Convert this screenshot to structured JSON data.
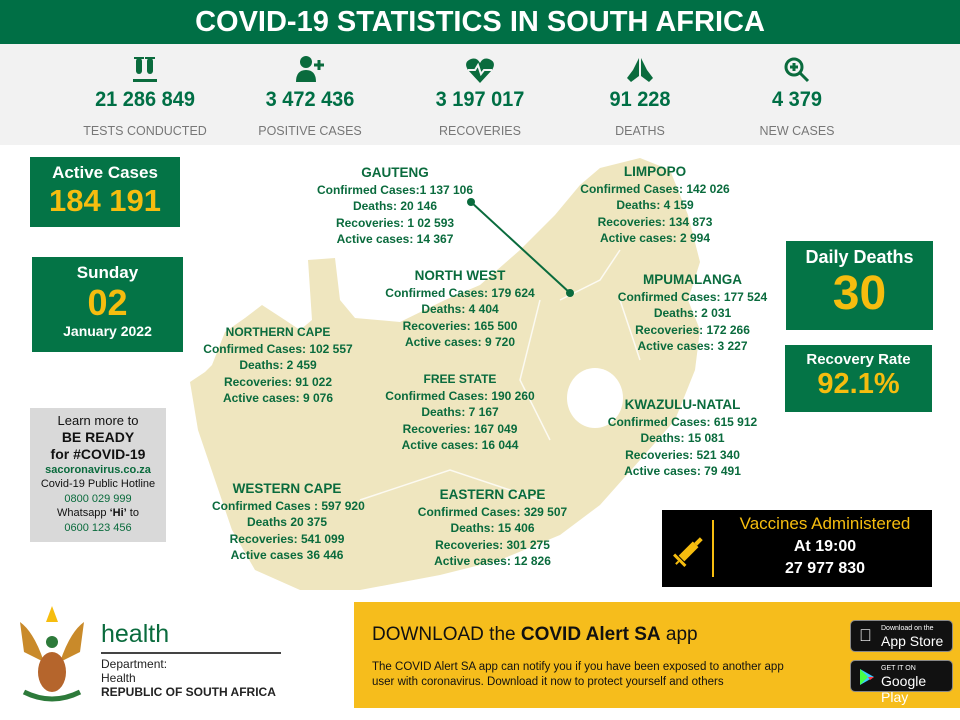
{
  "header": {
    "title": "COVID-19 STATISTICS IN SOUTH AFRICA"
  },
  "colors": {
    "brand_green": "#006f45",
    "accent_yellow": "#f6bd0f",
    "map_fill": "#efe6bf"
  },
  "stats": [
    {
      "icon": "test-tubes-icon",
      "value": "21 286 849",
      "label": "TESTS CONDUCTED"
    },
    {
      "icon": "user-plus-icon",
      "value": "3 472 436",
      "label": "POSITIVE CASES"
    },
    {
      "icon": "heartbeat-icon",
      "value": "3 197 017",
      "label": "RECOVERIES"
    },
    {
      "icon": "praying-hands-icon",
      "value": "91 228",
      "label": "DEATHS"
    },
    {
      "icon": "search-plus-icon",
      "value": "4 379",
      "label": "NEW CASES"
    }
  ],
  "active": {
    "label": "Active Cases",
    "value": "184 191"
  },
  "date": {
    "day": "Sunday",
    "date": "02",
    "month": "January 2022"
  },
  "daily_deaths": {
    "label": "Daily Deaths",
    "value": "30"
  },
  "recovery_rate": {
    "label": "Recovery Rate",
    "value": "92.1%"
  },
  "provinces": {
    "gauteng": {
      "name": "GAUTENG",
      "lines": [
        "Confirmed Cases:1  137 106",
        "Deaths: 20 146",
        "Recoveries: 1 02 593",
        "Active cases: 14 367"
      ]
    },
    "limpopo": {
      "name": "LIMPOPO",
      "lines": [
        "Confirmed Cases: 142 026",
        "Deaths:  4 159",
        "Recoveries: 134 873",
        "Active cases: 2 994"
      ]
    },
    "north_west": {
      "name": "NORTH WEST",
      "lines": [
        "Confirmed Cases: 179 624",
        "Deaths:  4 404",
        "Recoveries: 165 500",
        "Active cases: 9 720"
      ]
    },
    "mpumalanga": {
      "name": "MPUMALANGA",
      "lines": [
        "Confirmed Cases: 177 524",
        "Deaths:  2 031",
        "Recoveries: 172 266",
        "Active cases: 3 227"
      ]
    },
    "northern_cape": {
      "name": "NORTHERN CAPE",
      "lines": [
        "Confirmed Cases:  102 557",
        "Deaths: 2 459",
        "Recoveries: 91 022",
        "Active cases: 9 076"
      ]
    },
    "free_state": {
      "name": "FREE STATE",
      "lines": [
        "Confirmed Cases: 190 260",
        "Deaths: 7 167",
        "Recoveries: 167 049",
        "Active cases: 16 044"
      ]
    },
    "kwazulu_natal": {
      "name": "KWAZULU-NATAL",
      "lines": [
        "Confirmed Cases: 615 912",
        "Deaths: 15 081",
        "Recoveries: 521 340",
        "Active cases: 79 491"
      ]
    },
    "western_cape": {
      "name": "WESTERN CAPE",
      "lines": [
        "Confirmed Cases : 597 920",
        "Deaths 20 375",
        "Recoveries: 541 099",
        "Active cases 36 446"
      ]
    },
    "eastern_cape": {
      "name": "EASTERN CAPE",
      "lines": [
        "Confirmed Cases: 329 507",
        "Deaths: 15 406",
        "Recoveries: 301 275",
        "Active cases: 12 826"
      ]
    }
  },
  "learn": {
    "l1": "Learn more to",
    "l2": "BE READY",
    "l3": "for #COVID-19",
    "site": "sacoronavirus.co.za",
    "hotline_label": "Covid-19 Public Hotline",
    "hotline": "0800 029 999",
    "whatsapp_pre": "Whatsapp ",
    "whatsapp_hi": "‘Hi’",
    "whatsapp_post": " to",
    "whatsapp": "0600 123 456"
  },
  "vaccines": {
    "label": "Vaccines Administered",
    "time": "At 19:00",
    "value": "27 977 830"
  },
  "dept": {
    "health": "health",
    "l1": "Department:",
    "l2": "Health",
    "l3": "REPUBLIC OF SOUTH AFRICA"
  },
  "banner": {
    "pre": "DOWNLOAD the ",
    "bold": "COVID Alert SA",
    "post": " app",
    "desc1": "The COVID Alert SA app can notify you if you have been exposed to another app",
    "desc2": "user with coronavirus. Download it now to protect yourself and others",
    "appstore_small": "Download on the",
    "appstore": "App Store",
    "gplay_small": "GET IT ON",
    "gplay": "Google Play"
  }
}
